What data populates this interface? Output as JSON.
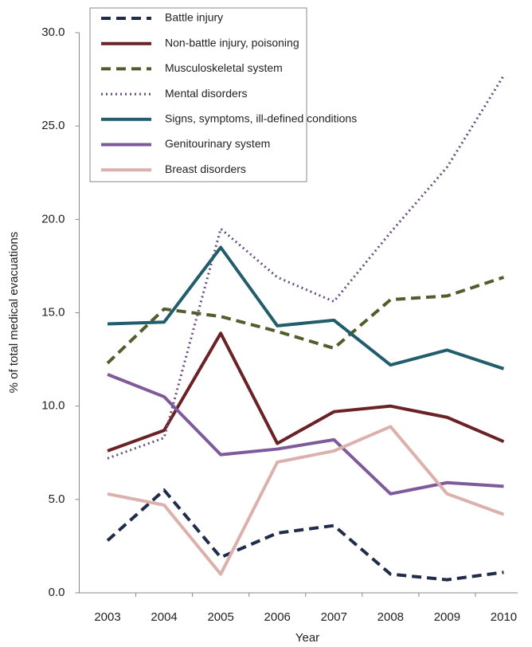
{
  "chart_data": {
    "type": "line",
    "x_label": "Year",
    "y_label": "% of total medical evacuations",
    "categories": [
      "2003",
      "2004",
      "2005",
      "2006",
      "2007",
      "2008",
      "2009",
      "2010"
    ],
    "ylim": [
      0,
      30
    ],
    "yticks": [
      {
        "value": 0,
        "label": "0.0"
      },
      {
        "value": 5,
        "label": "5.0"
      },
      {
        "value": 10,
        "label": "10.0"
      },
      {
        "value": 15,
        "label": "15.0"
      },
      {
        "value": 20,
        "label": "20.0"
      },
      {
        "value": 25,
        "label": "25.0"
      },
      {
        "value": 30,
        "label": "30.0"
      }
    ],
    "grid": false,
    "legend": "top-left",
    "series": [
      {
        "name": "Battle injury",
        "color": "#1f2d4a",
        "style": "dashed",
        "values": [
          2.8,
          5.5,
          1.9,
          3.2,
          3.6,
          1.0,
          0.7,
          1.1
        ]
      },
      {
        "name": "Non-battle injury, poisoning",
        "color": "#6b2226",
        "style": "solid",
        "values": [
          7.6,
          8.7,
          13.9,
          8.0,
          9.7,
          10.0,
          9.4,
          8.1
        ]
      },
      {
        "name": "Musculoskeletal system",
        "color": "#4f5e2b",
        "style": "dashed",
        "values": [
          12.3,
          15.2,
          14.8,
          14.0,
          13.1,
          15.7,
          15.9,
          16.9
        ]
      },
      {
        "name": "Mental disorders",
        "color": "#6a4c80",
        "style": "dotted",
        "values": [
          7.2,
          8.3,
          19.5,
          16.9,
          15.6,
          19.3,
          22.8,
          27.7
        ]
      },
      {
        "name": "Signs, symptoms, ill-defined conditions",
        "color": "#225d6b",
        "style": "solid",
        "values": [
          14.4,
          14.5,
          18.5,
          14.3,
          14.6,
          12.2,
          13.0,
          12.0
        ]
      },
      {
        "name": "Genitourinary system",
        "color": "#7e5a9b",
        "style": "solid",
        "values": [
          11.7,
          10.5,
          7.4,
          7.7,
          8.2,
          5.3,
          5.9,
          5.7
        ]
      },
      {
        "name": "Breast disorders",
        "color": "#dcb0ad",
        "style": "solid",
        "values": [
          5.3,
          4.7,
          1.0,
          7.0,
          7.6,
          8.9,
          5.3,
          4.2
        ]
      }
    ]
  }
}
